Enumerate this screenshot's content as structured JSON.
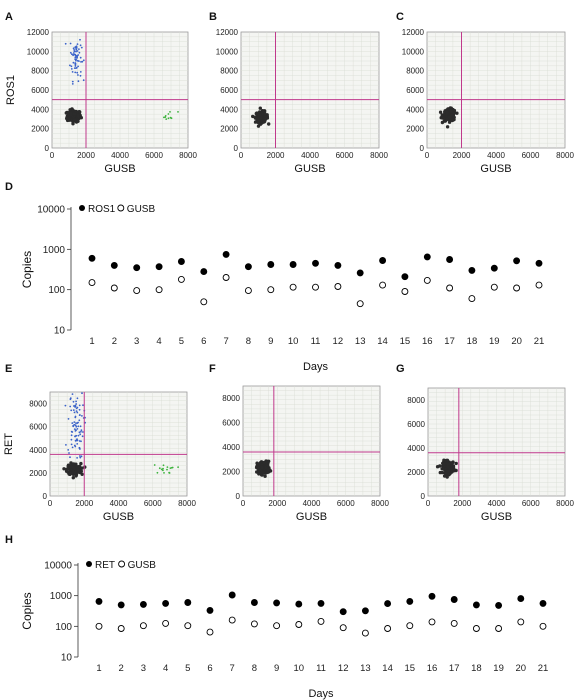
{
  "colors": {
    "pos_blue": "#3a62c9",
    "pos_green": "#3cb33c",
    "neg_cluster": "#2b2b2b",
    "gate_line": "#c0398c",
    "plot_bg": "#f4f5f2",
    "grid": "#d8dcd3"
  },
  "chart_data": [
    {
      "type": "scatter",
      "panel": "A",
      "panel_label": "A",
      "xlabel": "GUSB",
      "ylabel": "ROS1",
      "xlim": [
        0,
        8000
      ],
      "ylim": [
        0,
        12000
      ],
      "x_ticks": [
        "0",
        "2000",
        "4000",
        "6000",
        "8000"
      ],
      "y_ticks": [
        "0",
        "2000",
        "4000",
        "6000",
        "8000",
        "10000",
        "12000"
      ],
      "threshold_x": 2000,
      "threshold_y": 5000,
      "grid": true,
      "clusters": [
        {
          "name": "negative",
          "x_center": 1300,
          "y_center": 3300,
          "x_spread": 200,
          "y_spread": 300,
          "count": 160,
          "color": "#2b2b2b"
        },
        {
          "name": "ros1-positive",
          "x_center": 1400,
          "y_center": 9400,
          "x_spread": 170,
          "y_spread": 1200,
          "count": 70,
          "color": "#3a62c9"
        },
        {
          "name": "gusb-positive",
          "x_center": 6900,
          "y_center": 3300,
          "x_spread": 250,
          "y_spread": 250,
          "count": 10,
          "color": "#3cb33c"
        }
      ]
    },
    {
      "type": "scatter",
      "panel": "B",
      "panel_label": "B",
      "xlabel": "GUSB",
      "ylabel": "",
      "xlim": [
        0,
        8000
      ],
      "ylim": [
        0,
        12000
      ],
      "x_ticks": [
        "0",
        "2000",
        "4000",
        "6000",
        "8000"
      ],
      "y_ticks": [
        "0",
        "2000",
        "4000",
        "6000",
        "8000",
        "10000",
        "12000"
      ],
      "threshold_x": 2000,
      "threshold_y": 5000,
      "grid": true,
      "clusters": [
        {
          "name": "negative",
          "x_center": 1200,
          "y_center": 3200,
          "x_spread": 180,
          "y_spread": 280,
          "count": 140,
          "color": "#2b2b2b"
        }
      ]
    },
    {
      "type": "scatter",
      "panel": "C",
      "panel_label": "C",
      "xlabel": "GUSB",
      "ylabel": "",
      "xlim": [
        0,
        8000
      ],
      "ylim": [
        0,
        12000
      ],
      "x_ticks": [
        "0",
        "2000",
        "4000",
        "6000",
        "8000"
      ],
      "y_ticks": [
        "0",
        "2000",
        "4000",
        "6000",
        "8000",
        "10000",
        "12000"
      ],
      "threshold_x": 2000,
      "threshold_y": 5000,
      "grid": true,
      "clusters": [
        {
          "name": "negative",
          "x_center": 1300,
          "y_center": 3400,
          "x_spread": 180,
          "y_spread": 300,
          "count": 150,
          "color": "#2b2b2b"
        }
      ]
    },
    {
      "type": "scatter",
      "panel": "D",
      "panel_label": "D",
      "xlabel": "Days",
      "ylabel": "Copies",
      "y_log": true,
      "ylim": [
        10,
        10000
      ],
      "y_ticks": [
        "10",
        "100",
        "1000",
        "10000"
      ],
      "x": [
        1,
        2,
        3,
        4,
        5,
        6,
        7,
        8,
        9,
        10,
        11,
        12,
        13,
        14,
        15,
        16,
        17,
        18,
        19,
        20,
        21
      ],
      "legend_position": "top-left",
      "series": [
        {
          "name": "ROS1",
          "marker": "filled-circle",
          "values": [
            600,
            400,
            350,
            370,
            500,
            280,
            750,
            370,
            420,
            420,
            450,
            400,
            260,
            530,
            210,
            650,
            560,
            300,
            340,
            520,
            450
          ]
        },
        {
          "name": "GUSB",
          "marker": "open-circle",
          "values": [
            150,
            110,
            95,
            100,
            180,
            50,
            200,
            95,
            100,
            115,
            115,
            120,
            45,
            130,
            90,
            170,
            110,
            60,
            115,
            110,
            130
          ]
        }
      ]
    },
    {
      "type": "scatter",
      "panel": "E",
      "panel_label": "E",
      "xlabel": "GUSB",
      "ylabel": "RET",
      "xlim": [
        0,
        8000
      ],
      "ylim": [
        0,
        9000
      ],
      "x_ticks": [
        "0",
        "2000",
        "4000",
        "6000",
        "8000"
      ],
      "y_ticks": [
        "0",
        "2000",
        "4000",
        "6000",
        "8000"
      ],
      "threshold_x": 2000,
      "threshold_y": 3600,
      "grid": true,
      "clusters": [
        {
          "name": "negative",
          "x_center": 1400,
          "y_center": 2300,
          "x_spread": 200,
          "y_spread": 250,
          "count": 170,
          "color": "#2b2b2b"
        },
        {
          "name": "ret-positive",
          "x_center": 1500,
          "y_center": 6200,
          "x_spread": 230,
          "y_spread": 1500,
          "count": 90,
          "color": "#3a62c9"
        },
        {
          "name": "gusb-positive",
          "x_center": 6700,
          "y_center": 2300,
          "x_spread": 350,
          "y_spread": 200,
          "count": 16,
          "color": "#3cb33c"
        }
      ]
    },
    {
      "type": "scatter",
      "panel": "F",
      "panel_label": "F",
      "xlabel": "GUSB",
      "ylabel": "",
      "xlim": [
        0,
        8000
      ],
      "ylim": [
        0,
        9000
      ],
      "x_ticks": [
        "0",
        "2000",
        "4000",
        "6000",
        "8000"
      ],
      "y_ticks": [
        "0",
        "2000",
        "4000",
        "6000",
        "8000"
      ],
      "threshold_x": 1800,
      "threshold_y": 3600,
      "grid": true,
      "clusters": [
        {
          "name": "negative",
          "x_center": 1200,
          "y_center": 2300,
          "x_spread": 180,
          "y_spread": 260,
          "count": 150,
          "color": "#2b2b2b"
        }
      ]
    },
    {
      "type": "scatter",
      "panel": "G",
      "panel_label": "G",
      "xlabel": "GUSB",
      "ylabel": "",
      "xlim": [
        0,
        8000
      ],
      "ylim": [
        0,
        9000
      ],
      "x_ticks": [
        "0",
        "2000",
        "4000",
        "6000",
        "8000"
      ],
      "y_ticks": [
        "0",
        "2000",
        "4000",
        "6000",
        "8000"
      ],
      "threshold_x": 1800,
      "threshold_y": 3600,
      "grid": true,
      "clusters": [
        {
          "name": "negative",
          "x_center": 1200,
          "y_center": 2400,
          "x_spread": 170,
          "y_spread": 260,
          "count": 150,
          "color": "#2b2b2b"
        }
      ]
    },
    {
      "type": "scatter",
      "panel": "H",
      "panel_label": "H",
      "xlabel": "Days",
      "ylabel": "Copies",
      "y_log": true,
      "ylim": [
        10,
        10000
      ],
      "y_ticks": [
        "10",
        "100",
        "1000",
        "10000"
      ],
      "x": [
        1,
        2,
        3,
        4,
        5,
        6,
        7,
        8,
        9,
        10,
        11,
        12,
        13,
        14,
        15,
        16,
        17,
        18,
        19,
        20,
        21
      ],
      "legend_position": "top-left",
      "series": [
        {
          "name": "RET",
          "marker": "filled-circle",
          "values": [
            650,
            500,
            520,
            560,
            600,
            330,
            1050,
            600,
            580,
            530,
            560,
            300,
            320,
            550,
            650,
            950,
            750,
            500,
            480,
            800,
            560
          ]
        },
        {
          "name": "GUSB",
          "marker": "open-circle",
          "values": [
            100,
            85,
            105,
            125,
            105,
            65,
            160,
            120,
            105,
            115,
            145,
            90,
            60,
            85,
            105,
            140,
            125,
            85,
            85,
            140,
            100
          ]
        }
      ]
    }
  ]
}
